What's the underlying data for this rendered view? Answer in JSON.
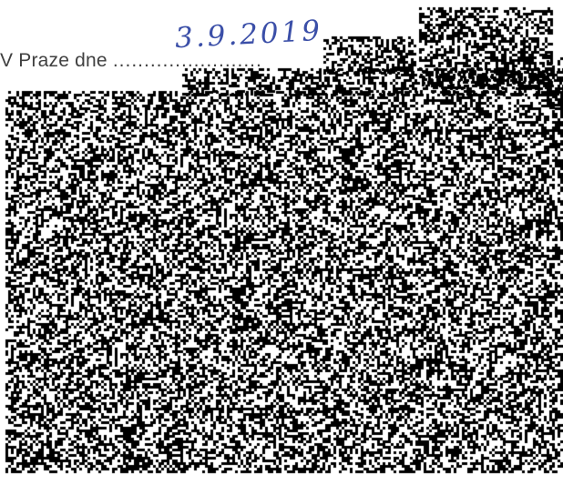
{
  "document": {
    "place_date_label": "V Praze dne",
    "dots": "........................",
    "handwritten_date": "3.9.2019"
  },
  "colors": {
    "printed_text": "#404040",
    "handwriting_ink": "#3b4fa8",
    "redaction_noise": "#000000"
  }
}
